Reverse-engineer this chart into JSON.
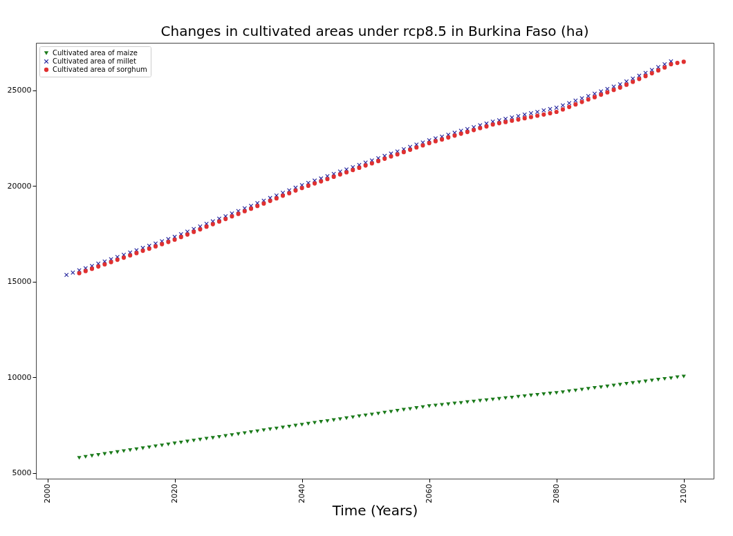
{
  "chart_data": {
    "type": "scatter",
    "title": "Changes in cultivated areas under rcp8.5 in Burkina Faso (ha)",
    "xlabel": "Time (Years)",
    "x": [
      2005,
      2006,
      2007,
      2008,
      2009,
      2010,
      2011,
      2012,
      2013,
      2014,
      2015,
      2016,
      2017,
      2018,
      2019,
      2020,
      2021,
      2022,
      2023,
      2024,
      2025,
      2026,
      2027,
      2028,
      2029,
      2030,
      2031,
      2032,
      2033,
      2034,
      2035,
      2036,
      2037,
      2038,
      2039,
      2040,
      2041,
      2042,
      2043,
      2044,
      2045,
      2046,
      2047,
      2048,
      2049,
      2050,
      2051,
      2052,
      2053,
      2054,
      2055,
      2056,
      2057,
      2058,
      2059,
      2060,
      2061,
      2062,
      2063,
      2064,
      2065,
      2066,
      2067,
      2068,
      2069,
      2070,
      2071,
      2072,
      2073,
      2074,
      2075,
      2076,
      2077,
      2078,
      2079,
      2080,
      2081,
      2082,
      2083,
      2084,
      2085,
      2086,
      2087,
      2088,
      2089,
      2090,
      2091,
      2092,
      2093,
      2094,
      2095,
      2096,
      2097,
      2098,
      2099,
      2100
    ],
    "series": [
      {
        "name": "Cultivated area of maize",
        "color": "#1a7a1a",
        "marker": "triangle",
        "values": [
          5800,
          5850,
          5900,
          5950,
          6000,
          6050,
          6100,
          6150,
          6200,
          6250,
          6300,
          6350,
          6400,
          6450,
          6500,
          6550,
          6600,
          6650,
          6700,
          6750,
          6800,
          6840,
          6890,
          6940,
          6990,
          7040,
          7090,
          7140,
          7190,
          7240,
          7290,
          7330,
          7380,
          7430,
          7480,
          7530,
          7580,
          7630,
          7680,
          7720,
          7770,
          7820,
          7870,
          7920,
          7970,
          8020,
          8060,
          8110,
          8160,
          8210,
          8260,
          8310,
          8350,
          8400,
          8450,
          8500,
          8530,
          8570,
          8600,
          8640,
          8670,
          8710,
          8740,
          8780,
          8810,
          8850,
          8880,
          8920,
          8950,
          8990,
          9020,
          9060,
          9090,
          9130,
          9160,
          9190,
          9230,
          9280,
          9320,
          9360,
          9410,
          9450,
          9490,
          9530,
          9580,
          9620,
          9670,
          9710,
          9750,
          9790,
          9840,
          9880,
          9920,
          9960,
          10010,
          10050
        ]
      },
      {
        "name": "Cultivated area of millet",
        "color": "#1f1f9a",
        "marker": "cross",
        "x": [
          2003,
          2004,
          2005,
          2006,
          2007,
          2008,
          2009,
          2010,
          2011,
          2012,
          2013,
          2014,
          2015,
          2016,
          2017,
          2018,
          2019,
          2020,
          2021,
          2022,
          2023,
          2024,
          2025,
          2026,
          2027,
          2028,
          2029,
          2030,
          2031,
          2032,
          2033,
          2034,
          2035,
          2036,
          2037,
          2038,
          2039,
          2040,
          2041,
          2042,
          2043,
          2044,
          2045,
          2046,
          2047,
          2048,
          2049,
          2050,
          2051,
          2052,
          2053,
          2054,
          2055,
          2056,
          2057,
          2058,
          2059,
          2060,
          2061,
          2062,
          2063,
          2064,
          2065,
          2066,
          2067,
          2068,
          2069,
          2070,
          2071,
          2072,
          2073,
          2074,
          2075,
          2076,
          2077,
          2078,
          2079,
          2080,
          2081,
          2082,
          2083,
          2084,
          2085,
          2086,
          2087,
          2088,
          2089,
          2090,
          2091,
          2092,
          2093,
          2094,
          2095,
          2096,
          2097,
          2098
        ],
        "values": [
          15360,
          15480,
          15600,
          15710,
          15830,
          15950,
          16060,
          16180,
          16300,
          16410,
          16530,
          16650,
          16770,
          16880,
          17000,
          17120,
          17230,
          17350,
          17490,
          17620,
          17760,
          17890,
          18030,
          18160,
          18300,
          18430,
          18570,
          18700,
          18840,
          18970,
          19110,
          19240,
          19380,
          19510,
          19650,
          19780,
          19920,
          20050,
          20170,
          20290,
          20400,
          20520,
          20640,
          20760,
          20870,
          20990,
          21110,
          21230,
          21340,
          21460,
          21580,
          21700,
          21810,
          21930,
          22050,
          22170,
          22280,
          22400,
          22500,
          22590,
          22690,
          22790,
          22890,
          22980,
          23080,
          23180,
          23270,
          23370,
          23440,
          23520,
          23590,
          23660,
          23740,
          23810,
          23880,
          23960,
          24030,
          24100,
          24220,
          24340,
          24470,
          24590,
          24710,
          24830,
          24950,
          25080,
          25200,
          25320,
          25470,
          25620,
          25770,
          25920,
          26070,
          26220,
          26370,
          26520
        ]
      },
      {
        "name": "Cultivated area of sorghum",
        "color": "#e03030",
        "marker": "circle",
        "values": [
          15450,
          15560,
          15680,
          15800,
          15910,
          16030,
          16150,
          16260,
          16380,
          16500,
          16620,
          16730,
          16850,
          16970,
          17080,
          17200,
          17340,
          17470,
          17610,
          17740,
          17880,
          18010,
          18150,
          18280,
          18420,
          18550,
          18690,
          18820,
          18960,
          19090,
          19230,
          19360,
          19500,
          19630,
          19770,
          19900,
          20020,
          20140,
          20250,
          20370,
          20490,
          20610,
          20720,
          20840,
          20960,
          21080,
          21190,
          21310,
          21430,
          21550,
          21660,
          21780,
          21900,
          22020,
          22130,
          22250,
          22350,
          22440,
          22540,
          22640,
          22740,
          22830,
          22930,
          23030,
          23120,
          23220,
          23290,
          23350,
          23420,
          23480,
          23550,
          23610,
          23680,
          23740,
          23810,
          23880,
          24010,
          24140,
          24270,
          24400,
          24530,
          24650,
          24780,
          24900,
          25030,
          25150,
          25300,
          25450,
          25600,
          25750,
          25900,
          26050,
          26200,
          26370,
          26440,
          26500
        ]
      }
    ],
    "xlim": [
      1998.2,
      2104.7
    ],
    "xticks": [
      2000,
      2020,
      2040,
      2060,
      2080,
      2100
    ],
    "ylim": [
      4710,
      27490
    ],
    "yticks": [
      5000,
      10000,
      15000,
      20000,
      25000
    ],
    "legend": "top left"
  }
}
